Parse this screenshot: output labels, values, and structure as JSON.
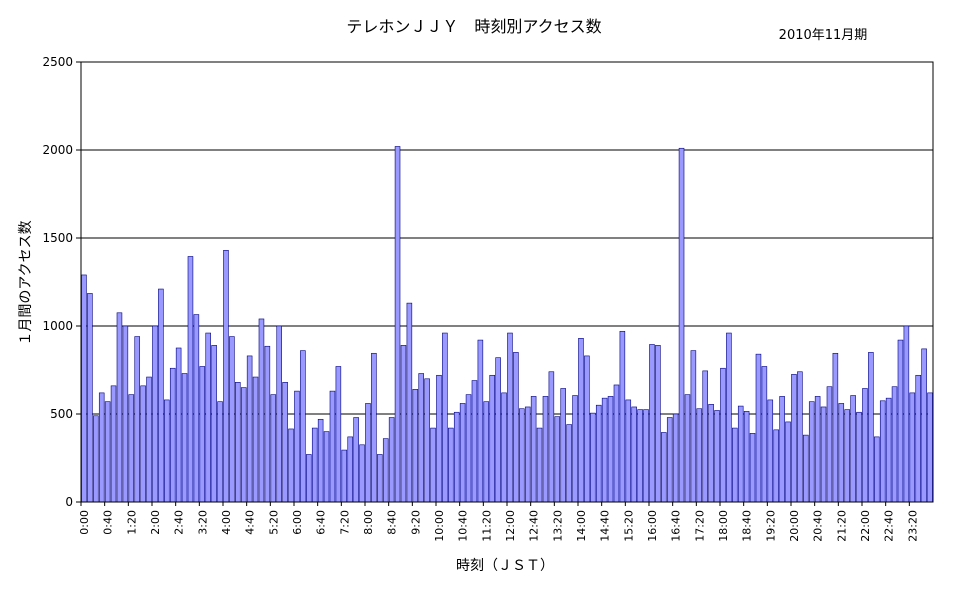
{
  "chart_data": {
    "type": "bar",
    "title": "テレホンＪＪＹ　時刻別アクセス数",
    "subtitle": "2010年11月期",
    "xlabel": "時刻（ＪＳＴ）",
    "ylabel": "１月間のアクセス数",
    "ylim": [
      0,
      2500
    ],
    "yticks": [
      0,
      500,
      1000,
      1500,
      2000,
      2500
    ],
    "grid": "horizontal",
    "legend": "none",
    "bar_color": "#9999ff",
    "bar_edge_color": "#000080",
    "interval_minutes": 10,
    "tick_every": 4,
    "categories": [
      "0:00",
      "0:10",
      "0:20",
      "0:30",
      "0:40",
      "0:50",
      "1:00",
      "1:10",
      "1:20",
      "1:30",
      "1:40",
      "1:50",
      "2:00",
      "2:10",
      "2:20",
      "2:30",
      "2:40",
      "2:50",
      "3:00",
      "3:10",
      "3:20",
      "3:30",
      "3:40",
      "3:50",
      "4:00",
      "4:10",
      "4:20",
      "4:30",
      "4:40",
      "4:50",
      "5:00",
      "5:10",
      "5:20",
      "5:30",
      "5:40",
      "5:50",
      "6:00",
      "6:10",
      "6:20",
      "6:30",
      "6:40",
      "6:50",
      "7:00",
      "7:10",
      "7:20",
      "7:30",
      "7:40",
      "7:50",
      "8:00",
      "8:10",
      "8:20",
      "8:30",
      "8:40",
      "8:50",
      "9:00",
      "9:10",
      "9:20",
      "9:30",
      "9:40",
      "9:50",
      "10:00",
      "10:10",
      "10:20",
      "10:30",
      "10:40",
      "10:50",
      "11:00",
      "11:10",
      "11:20",
      "11:30",
      "11:40",
      "11:50",
      "12:00",
      "12:10",
      "12:20",
      "12:30",
      "12:40",
      "12:50",
      "13:00",
      "13:10",
      "13:20",
      "13:30",
      "13:40",
      "13:50",
      "14:00",
      "14:10",
      "14:20",
      "14:30",
      "14:40",
      "14:50",
      "15:00",
      "15:10",
      "15:20",
      "15:30",
      "15:40",
      "15:50",
      "16:00",
      "16:10",
      "16:20",
      "16:30",
      "16:40",
      "16:50",
      "17:00",
      "17:10",
      "17:20",
      "17:30",
      "17:40",
      "17:50",
      "18:00",
      "18:10",
      "18:20",
      "18:30",
      "18:40",
      "18:50",
      "19:00",
      "19:10",
      "19:20",
      "19:30",
      "19:40",
      "19:50",
      "20:00",
      "20:10",
      "20:20",
      "20:30",
      "20:40",
      "20:50",
      "21:00",
      "21:10",
      "21:20",
      "21:30",
      "21:40",
      "21:50",
      "22:00",
      "22:10",
      "22:20",
      "22:30",
      "22:40",
      "22:50",
      "23:00",
      "23:10",
      "23:20",
      "23:30",
      "23:40",
      "23:50"
    ],
    "values": [
      1290,
      1185,
      490,
      620,
      570,
      660,
      1075,
      1000,
      610,
      940,
      660,
      710,
      1000,
      1210,
      580,
      760,
      875,
      730,
      1395,
      1065,
      770,
      960,
      890,
      570,
      1430,
      940,
      680,
      650,
      830,
      710,
      1040,
      885,
      610,
      1000,
      680,
      415,
      630,
      860,
      270,
      420,
      470,
      400,
      630,
      770,
      295,
      370,
      480,
      325,
      560,
      845,
      270,
      360,
      480,
      2020,
      890,
      1130,
      640,
      730,
      700,
      420,
      720,
      960,
      420,
      510,
      560,
      610,
      690,
      920,
      570,
      720,
      820,
      620,
      960,
      850,
      530,
      540,
      600,
      420,
      600,
      740,
      485,
      645,
      440,
      605,
      930,
      830,
      505,
      550,
      590,
      600,
      665,
      970,
      580,
      540,
      525,
      525,
      895,
      890,
      395,
      480,
      500,
      2010,
      610,
      860,
      530,
      745,
      555,
      520,
      760,
      960,
      420,
      545,
      515,
      390,
      840,
      770,
      580,
      410,
      600,
      455,
      725,
      740,
      380,
      570,
      600,
      540,
      655,
      845,
      560,
      525,
      605,
      510,
      645,
      850,
      370,
      575,
      590,
      655,
      920,
      1000,
      620,
      720,
      870,
      620
    ]
  }
}
